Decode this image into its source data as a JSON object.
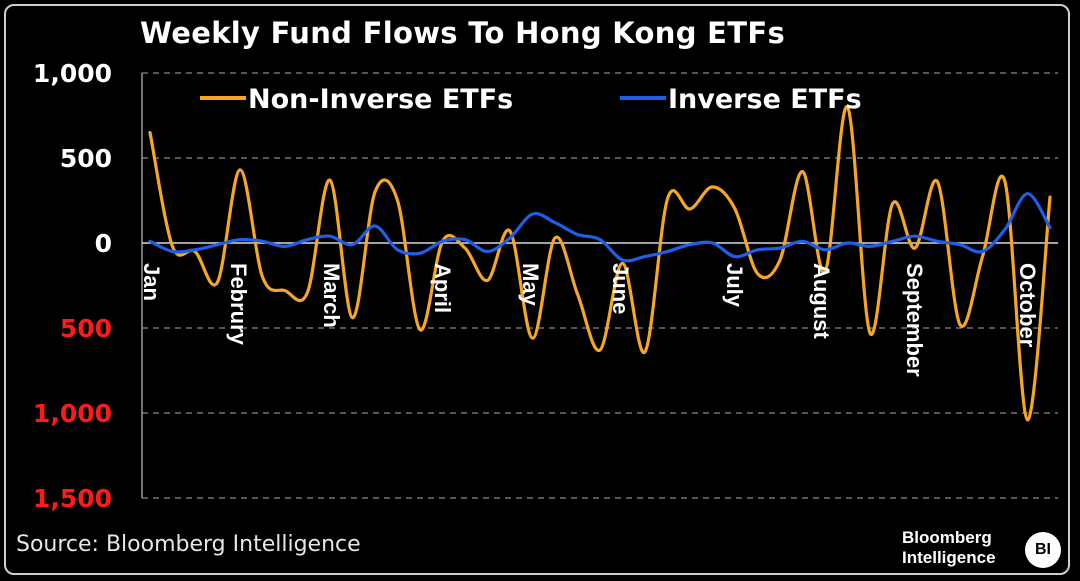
{
  "chart_data": {
    "type": "line",
    "title": "Weekly Fund Flows To Hong Kong ETFs",
    "ylim": [
      -1500,
      1000
    ],
    "yticks": [
      {
        "value": 1000,
        "label": "1,000",
        "color": "#ffffff"
      },
      {
        "value": 500,
        "label": "500",
        "color": "#ffffff"
      },
      {
        "value": 0,
        "label": "0",
        "color": "#ffffff"
      },
      {
        "value": -500,
        "label": "500",
        "color": "#ff1a1a"
      },
      {
        "value": -1000,
        "label": "1,000",
        "color": "#ff1a1a"
      },
      {
        "value": -1500,
        "label": "1,500",
        "color": "#ff1a1a"
      }
    ],
    "months": [
      "Jan",
      "Februry",
      "March",
      "April",
      "May",
      "June",
      "July",
      "August",
      "September",
      "October"
    ],
    "grid": true,
    "legend_position": "top",
    "series": [
      {
        "name": "Non-Inverse ETFs",
        "color": "#f5a623",
        "values": [
          650,
          -20,
          -50,
          -230,
          430,
          -200,
          -280,
          -290,
          370,
          -440,
          300,
          250,
          -510,
          10,
          -30,
          -220,
          70,
          -560,
          30,
          -300,
          -630,
          -120,
          -640,
          260,
          200,
          330,
          200,
          -180,
          -100,
          420,
          -170,
          800,
          -530,
          230,
          -30,
          360,
          -480,
          -80,
          360,
          -1040,
          270
        ]
      },
      {
        "name": "Inverse ETFs",
        "color": "#1f5ee6",
        "values": [
          10,
          -50,
          -40,
          -10,
          20,
          10,
          -20,
          20,
          40,
          -10,
          100,
          -40,
          -60,
          10,
          20,
          -50,
          30,
          170,
          120,
          50,
          20,
          -100,
          -80,
          -50,
          -10,
          0,
          -80,
          -40,
          -30,
          10,
          -40,
          0,
          -20,
          10,
          40,
          10,
          -10,
          -50,
          80,
          290,
          90
        ]
      }
    ]
  },
  "source": "Source: Bloomberg Intelligence",
  "brand": {
    "line1": "Bloomberg",
    "line2": "Intelligence",
    "badge": "BI"
  }
}
